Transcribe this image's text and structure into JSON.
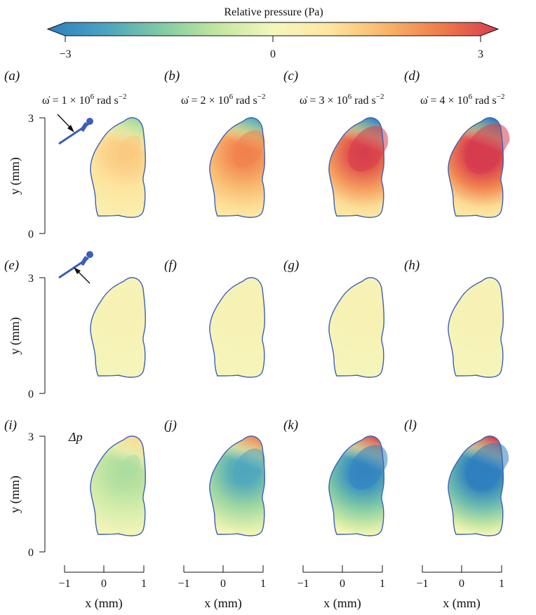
{
  "colorbar": {
    "label": "Relative pressure (Pa)",
    "ticks": [
      "−3",
      "0",
      "3"
    ],
    "range": [
      -3,
      3
    ],
    "colors": [
      "#2f7fbf",
      "#4aa3c0",
      "#7fcaa4",
      "#c2e69f",
      "#f4f7bd",
      "#fde6a0",
      "#f9b56a",
      "#ef7b4b",
      "#d73d4f"
    ]
  },
  "panel_labels": {
    "a": "(a)",
    "b": "(b)",
    "c": "(c)",
    "d": "(d)",
    "e": "(e)",
    "f": "(f)",
    "g": "(g)",
    "h": "(h)",
    "i": "(i)",
    "j": "(j)",
    "k": "(k)",
    "l": "(l)"
  },
  "column_titles": [
    {
      "prefix": "ω̇ = 1 × 10",
      "exp": "6",
      "unit": " rad s",
      "unit_exp": "−2"
    },
    {
      "prefix": "ω̇ = 2 × 10",
      "exp": "6",
      "unit": " rad s",
      "unit_exp": "−2"
    },
    {
      "prefix": "ω̇ = 3 × 10",
      "exp": "6",
      "unit": " rad s",
      "unit_exp": "−2"
    },
    {
      "prefix": "ω̇ = 4 × 10",
      "exp": "6",
      "unit": " rad s",
      "unit_exp": "−2"
    }
  ],
  "row3_annotation": "Δp",
  "axes": {
    "y_label": "y (mm)",
    "x_label": "x (mm)",
    "y_ticks": [
      "0",
      "3"
    ],
    "x_ticks": [
      "−1",
      "0",
      "1"
    ]
  },
  "chart_data": {
    "type": "heatmap",
    "rows": 3,
    "cols": 4,
    "xlim": [
      -1,
      1
    ],
    "ylim": [
      0,
      3
    ],
    "angular_acceleration_rad_s2": [
      1000000,
      2000000,
      3000000,
      4000000
    ],
    "hotspot": {
      "x": 0.35,
      "y": 2.05
    },
    "panels": [
      {
        "id": "a",
        "peak_pa": 1.2
      },
      {
        "id": "b",
        "peak_pa": 2.2
      },
      {
        "id": "c",
        "peak_pa": 3.0
      },
      {
        "id": "d",
        "peak_pa": 3.5
      },
      {
        "id": "e",
        "peak_pa": 0.25
      },
      {
        "id": "f",
        "peak_pa": 0.25
      },
      {
        "id": "g",
        "peak_pa": 0.25
      },
      {
        "id": "h",
        "peak_pa": 0.25
      },
      {
        "id": "i",
        "peak_pa": -1.0
      },
      {
        "id": "j",
        "peak_pa": -2.2
      },
      {
        "id": "k",
        "peak_pa": -2.9
      },
      {
        "id": "l",
        "peak_pa": -3.3
      }
    ]
  }
}
